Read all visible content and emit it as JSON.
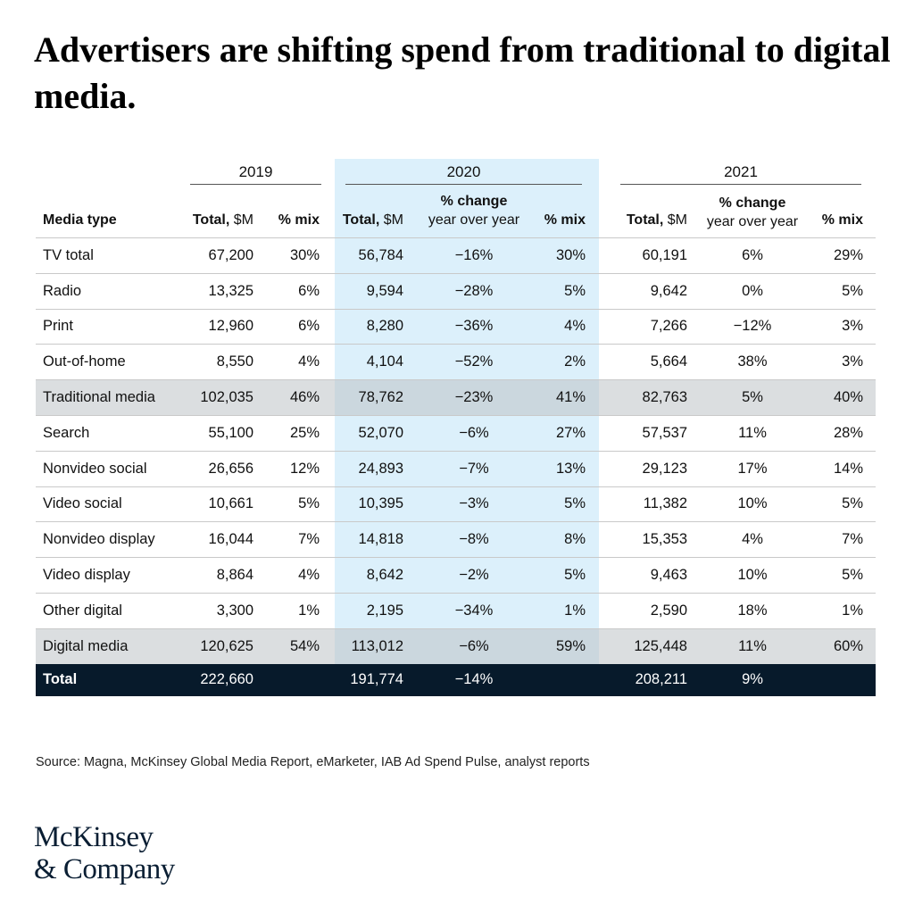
{
  "title": "Advertisers are shifting spend from traditional to digital media.",
  "colors": {
    "highlight_2020": "#dcf0fb",
    "subtotal_row": "#d3d6d8",
    "total_row": "#071a2b"
  },
  "chart_data": {
    "type": "table",
    "title": "Advertisers are shifting spend from traditional to digital media.",
    "years": [
      "2019",
      "2020",
      "2021"
    ],
    "columns": {
      "media_type": "Media type",
      "total_bold": "Total,",
      "total_unit": " $M",
      "mix": "% mix",
      "change_top": "% change",
      "change_bottom": "year over year"
    },
    "rows": [
      {
        "name": "TV  total",
        "kind": "item",
        "t2019": "67,200",
        "m2019": "30%",
        "t2020": "56,784",
        "c2020": "−16%",
        "m2020": "30%",
        "t2021": "60,191",
        "c2021": "6%",
        "m2021": "29%"
      },
      {
        "name": "Radio",
        "kind": "item",
        "t2019": "13,325",
        "m2019": "6%",
        "t2020": "9,594",
        "c2020": "−28%",
        "m2020": "5%",
        "t2021": "9,642",
        "c2021": "0%",
        "m2021": "5%"
      },
      {
        "name": "Print",
        "kind": "item",
        "t2019": "12,960",
        "m2019": "6%",
        "t2020": "8,280",
        "c2020": "−36%",
        "m2020": "4%",
        "t2021": "7,266",
        "c2021": "−12%",
        "m2021": "3%"
      },
      {
        "name": "Out-of-home",
        "kind": "item",
        "t2019": "8,550",
        "m2019": "4%",
        "t2020": "4,104",
        "c2020": "−52%",
        "m2020": "2%",
        "t2021": "5,664",
        "c2021": "38%",
        "m2021": "3%"
      },
      {
        "name": "Traditional media",
        "kind": "sub",
        "t2019": "102,035",
        "m2019": "46%",
        "t2020": "78,762",
        "c2020": "−23%",
        "m2020": "41%",
        "t2021": "82,763",
        "c2021": "5%",
        "m2021": "40%"
      },
      {
        "name": "Search",
        "kind": "item",
        "t2019": "55,100",
        "m2019": "25%",
        "t2020": "52,070",
        "c2020": "−6%",
        "m2020": "27%",
        "t2021": "57,537",
        "c2021": "11%",
        "m2021": "28%"
      },
      {
        "name": "Nonvideo social",
        "kind": "item",
        "t2019": "26,656",
        "m2019": "12%",
        "t2020": "24,893",
        "c2020": "−7%",
        "m2020": "13%",
        "t2021": "29,123",
        "c2021": "17%",
        "m2021": "14%"
      },
      {
        "name": "Video social",
        "kind": "item",
        "t2019": "10,661",
        "m2019": "5%",
        "t2020": "10,395",
        "c2020": "−3%",
        "m2020": "5%",
        "t2021": "11,382",
        "c2021": "10%",
        "m2021": "5%"
      },
      {
        "name": "Nonvideo display",
        "kind": "item",
        "t2019": "16,044",
        "m2019": "7%",
        "t2020": "14,818",
        "c2020": "−8%",
        "m2020": "8%",
        "t2021": "15,353",
        "c2021": "4%",
        "m2021": "7%"
      },
      {
        "name": "Video display",
        "kind": "item",
        "t2019": "8,864",
        "m2019": "4%",
        "t2020": "8,642",
        "c2020": "−2%",
        "m2020": "5%",
        "t2021": "9,463",
        "c2021": "10%",
        "m2021": "5%"
      },
      {
        "name": "Other digital",
        "kind": "item",
        "t2019": "3,300",
        "m2019": "1%",
        "t2020": "2,195",
        "c2020": "−34%",
        "m2020": "1%",
        "t2021": "2,590",
        "c2021": "18%",
        "m2021": "1%"
      },
      {
        "name": "Digital media",
        "kind": "sub",
        "t2019": "120,625",
        "m2019": "54%",
        "t2020": "113,012",
        "c2020": "−6%",
        "m2020": "59%",
        "t2021": "125,448",
        "c2021": "11%",
        "m2021": "60%"
      },
      {
        "name": "Total",
        "kind": "total",
        "t2019": "222,660",
        "m2019": "",
        "t2020": "191,774",
        "c2020": "−14%",
        "m2020": "",
        "t2021": "208,211",
        "c2021": "9%",
        "m2021": ""
      }
    ]
  },
  "source": "Source: Magna, McKinsey Global Media Report, eMarketer, IAB Ad Spend Pulse, analyst reports",
  "logo": {
    "line1": "McKinsey",
    "line2": "& Company"
  }
}
